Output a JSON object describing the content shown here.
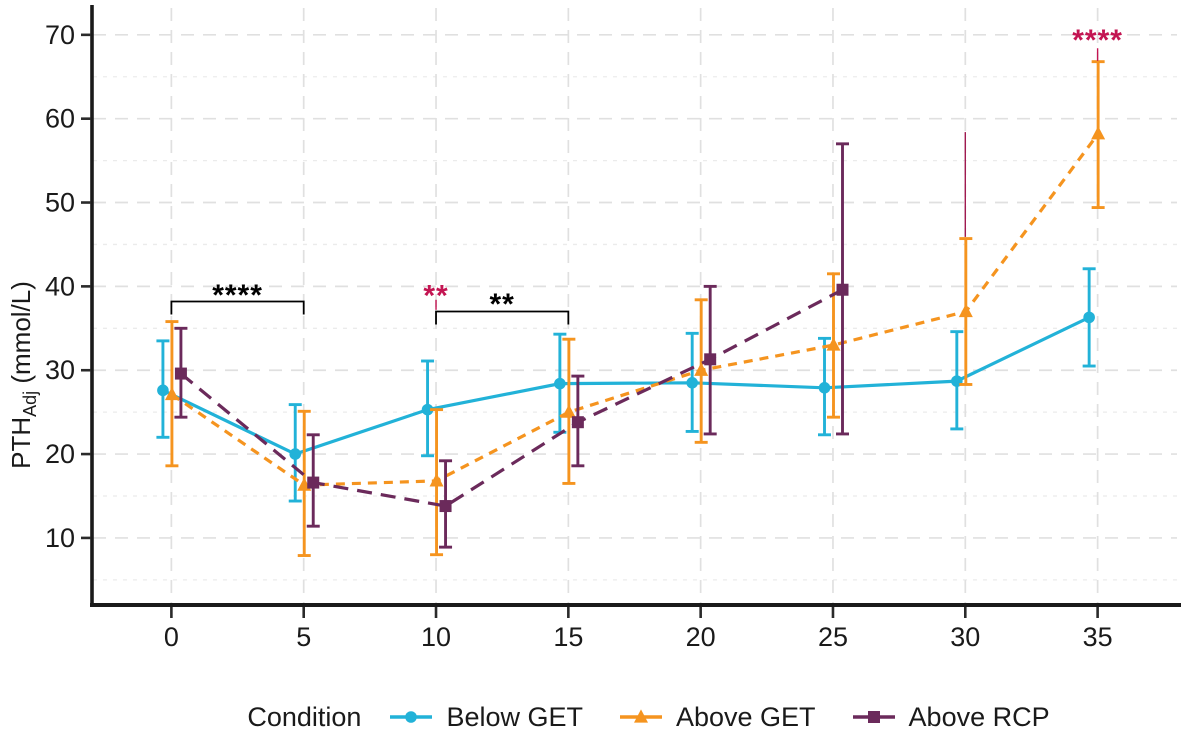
{
  "figure": {
    "y_axis_label": {
      "main": "PTH",
      "subscript": "Adj",
      "unit": " (mmol/L)"
    },
    "legend_title": "Condition"
  },
  "chart_data": {
    "type": "line",
    "title": "",
    "xlabel": "",
    "ylabel": "PTH_Adj (mmol/L)",
    "legend_title": "Condition",
    "legend_position": "bottom",
    "grid": true,
    "x_ticks": [
      0,
      5,
      10,
      15,
      20,
      25,
      30,
      35
    ],
    "y_ticks": [
      10,
      20,
      30,
      40,
      50,
      60,
      70
    ],
    "y_minor_ticks": [
      5,
      15,
      25,
      35,
      45,
      55,
      65
    ],
    "xlim": [
      -3.0,
      38.0
    ],
    "ylim": [
      2.0,
      73.2
    ],
    "series": [
      {
        "name": "Below GET",
        "color": "#22B2D8",
        "marker": "circle",
        "linestyle": "solid",
        "dodge": -0.32,
        "x": [
          0,
          5,
          10,
          15,
          20,
          25,
          30,
          35
        ],
        "y": [
          27.6,
          20.0,
          25.3,
          28.4,
          28.5,
          27.9,
          28.7,
          36.3
        ],
        "err_low": [
          22.0,
          14.4,
          19.8,
          22.6,
          22.7,
          22.3,
          23.0,
          30.5
        ],
        "err_high": [
          33.5,
          25.9,
          31.1,
          34.3,
          34.4,
          33.8,
          34.6,
          42.1
        ]
      },
      {
        "name": "Above GET",
        "color": "#F5941F",
        "marker": "triangle",
        "linestyle": "dashed-short",
        "dodge": 0.02,
        "x": [
          0,
          5,
          10,
          15,
          20,
          25,
          30,
          35
        ],
        "y": [
          27.1,
          16.3,
          16.8,
          25.0,
          30.0,
          33.0,
          37.0,
          58.2
        ],
        "err_low": [
          18.6,
          7.9,
          8.0,
          16.5,
          21.4,
          24.4,
          28.3,
          49.4
        ],
        "err_high": [
          35.8,
          25.1,
          25.3,
          33.7,
          38.4,
          41.5,
          45.7,
          66.8
        ]
      },
      {
        "name": "Above RCP",
        "color": "#6B2A5B",
        "marker": "square",
        "linestyle": "dashed-long",
        "dodge": 0.36,
        "x": [
          0,
          5,
          10,
          15,
          20,
          25
        ],
        "y": [
          29.6,
          16.6,
          13.8,
          23.8,
          31.3,
          39.6
        ],
        "err_low": [
          24.4,
          11.4,
          8.9,
          18.6,
          22.4,
          22.4
        ],
        "err_high": [
          35.0,
          22.3,
          19.2,
          29.3,
          40.0,
          57.0
        ]
      }
    ],
    "significance": {
      "brackets": [
        {
          "x1": 0,
          "x2": 5,
          "y": 38.2,
          "label": "****",
          "label_y": 39.7,
          "color": "#000000"
        },
        {
          "x1": 10,
          "x2": 15,
          "y": 37.0,
          "label": "**",
          "label_y": 38.6,
          "color": "#000000"
        }
      ],
      "stars": [
        {
          "x": 10,
          "label_y": 39.6,
          "label": "**",
          "color": "#C31552",
          "stem": [
            37.2,
            38.4
          ]
        },
        {
          "x": 30,
          "label_y": null,
          "label": "",
          "color": "#A01A50",
          "stem": [
            45.9,
            58.4
          ]
        },
        {
          "x": 35,
          "label_y": 70.1,
          "label": "****",
          "color": "#C31552",
          "stem": [
            66.9,
            68.4
          ]
        }
      ]
    },
    "colors": {
      "axis": "#1a1a1a",
      "grid_major": "#E0E0E0",
      "grid_minor": "#EBEBEB",
      "star_red": "#C31552"
    }
  }
}
